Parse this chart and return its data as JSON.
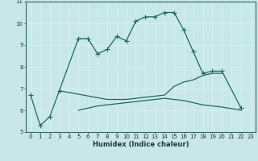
{
  "xlabel": "Humidex (Indice chaleur)",
  "background_color": "#c8e8e8",
  "grid_color": "#e8f8f8",
  "line_color": "#1a6b5a",
  "x": [
    0,
    1,
    2,
    3,
    4,
    5,
    6,
    7,
    8,
    9,
    10,
    11,
    12,
    13,
    14,
    15,
    16,
    17,
    18,
    19,
    20,
    21,
    22,
    23
  ],
  "series1_x": [
    0,
    1,
    2,
    3,
    5,
    6,
    7,
    8,
    9,
    10,
    11,
    12,
    13,
    14,
    15,
    16,
    17,
    18,
    19,
    20,
    22
  ],
  "series1_y": [
    6.7,
    5.3,
    5.7,
    6.9,
    9.3,
    9.3,
    8.6,
    8.8,
    9.4,
    9.2,
    10.1,
    10.3,
    10.3,
    10.5,
    10.5,
    9.7,
    8.7,
    7.7,
    7.8,
    7.8,
    6.1
  ],
  "series2_x": [
    3,
    8,
    9,
    10,
    11,
    12,
    13,
    14,
    15,
    16,
    17,
    18,
    19,
    20
  ],
  "series2_y": [
    6.9,
    6.5,
    6.5,
    6.5,
    6.55,
    6.6,
    6.65,
    6.7,
    7.1,
    7.3,
    7.4,
    7.6,
    7.7,
    7.7
  ],
  "series3_x": [
    5,
    6,
    7,
    8,
    9,
    10,
    11,
    12,
    13,
    14,
    15,
    16,
    17,
    18,
    19,
    20,
    22
  ],
  "series3_y": [
    6.0,
    6.1,
    6.2,
    6.25,
    6.3,
    6.35,
    6.4,
    6.45,
    6.5,
    6.55,
    6.5,
    6.45,
    6.35,
    6.25,
    6.2,
    6.15,
    6.0
  ],
  "ylim": [
    5,
    11
  ],
  "xlim": [
    -0.5,
    23.5
  ],
  "yticks": [
    5,
    6,
    7,
    8,
    9,
    10,
    11
  ],
  "xticks": [
    0,
    1,
    2,
    3,
    4,
    5,
    6,
    7,
    8,
    9,
    10,
    11,
    12,
    13,
    14,
    15,
    16,
    17,
    18,
    19,
    20,
    21,
    22,
    23
  ]
}
